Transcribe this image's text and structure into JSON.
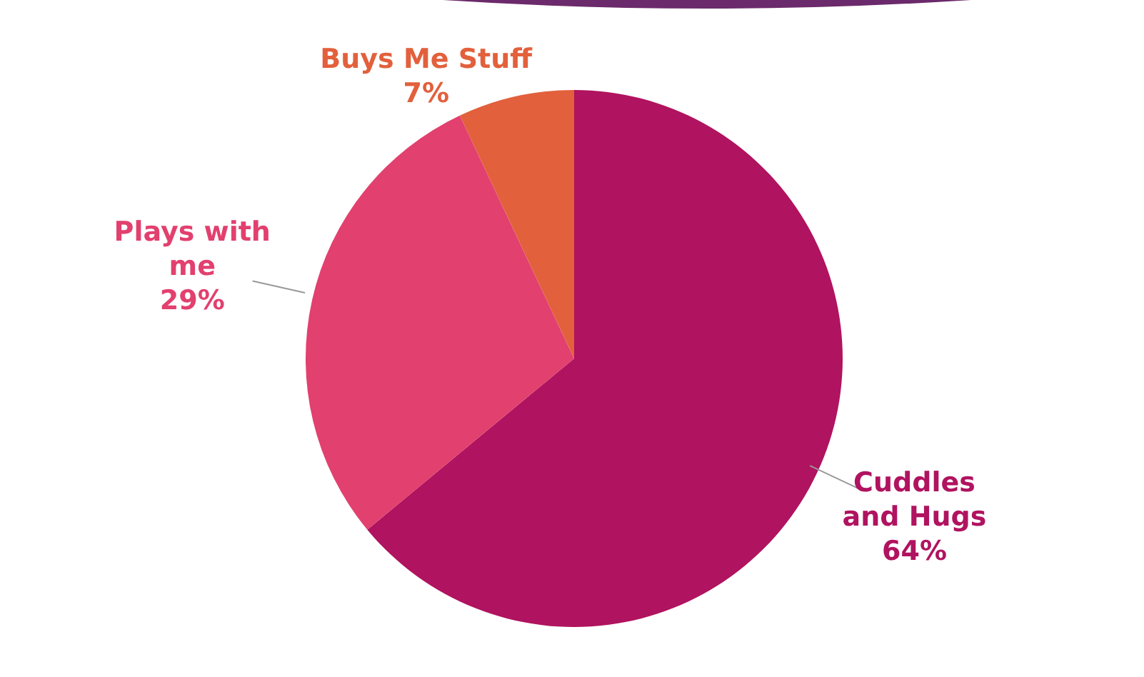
{
  "chart_data": {
    "type": "pie",
    "categories": [
      "Cuddles and Hugs",
      "Plays with me",
      "Buys Me Stuff"
    ],
    "values": [
      64,
      29,
      7
    ],
    "colors": [
      "#b0135f",
      "#e2406e",
      "#e2603c"
    ],
    "value_labels": [
      "64%",
      "29%",
      "7%"
    ],
    "legend": false
  }
}
